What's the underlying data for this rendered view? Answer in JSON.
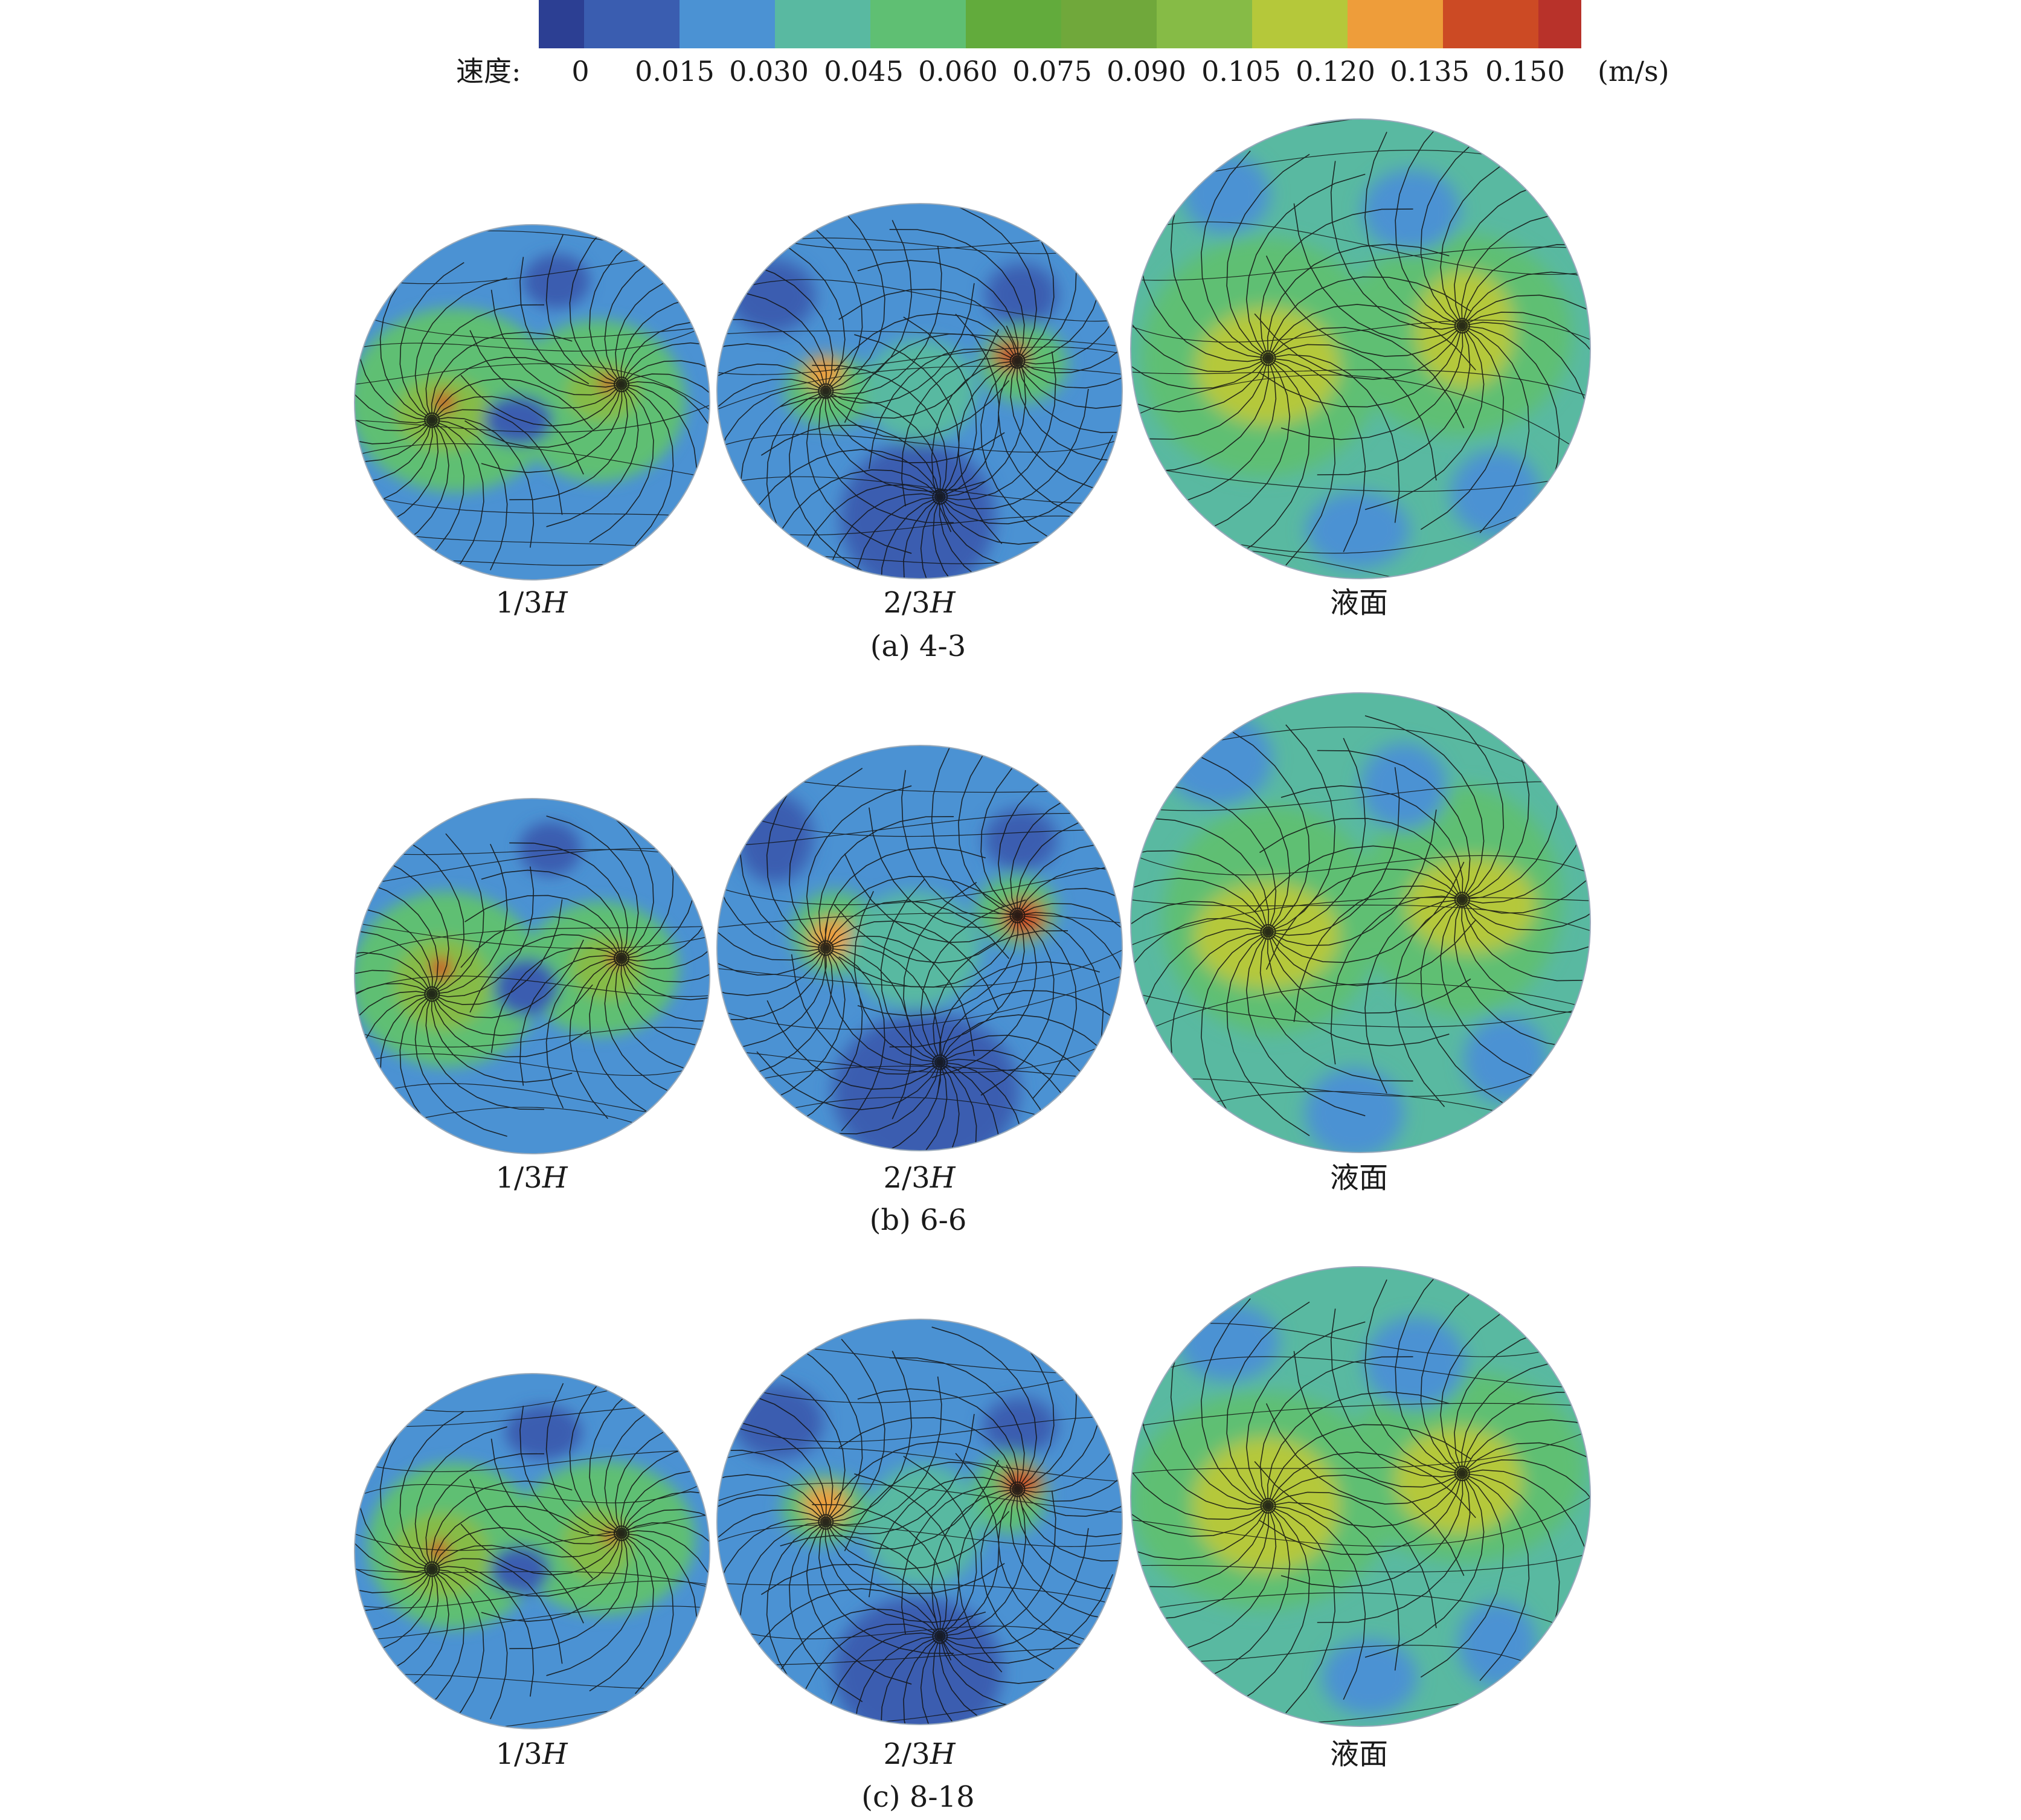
{
  "legend": {
    "label": "速度:",
    "unit": "(m/s)",
    "ticks": [
      "0",
      "0.015",
      "0.030",
      "0.045",
      "0.060",
      "0.075",
      "0.090",
      "0.105",
      "0.120",
      "0.135",
      "0.150"
    ],
    "colors": [
      "#2c3f93",
      "#3a5db0",
      "#4b92d3",
      "#59b9a1",
      "#5fbf73",
      "#62ab3c",
      "#70a83b",
      "#86bb46",
      "#b5c83a",
      "#ee9d3a",
      "#cc4a24",
      "#b8322a"
    ]
  },
  "rows": [
    {
      "caption": "(a) 4-3",
      "plots": [
        {
          "label_prefix": "1/3",
          "label_var": "H"
        },
        {
          "label_prefix": "2/3",
          "label_var": "H"
        },
        {
          "label_text": "液面"
        }
      ]
    },
    {
      "caption": "(b) 6-6",
      "plots": [
        {
          "label_prefix": "1/3",
          "label_var": "H"
        },
        {
          "label_prefix": "2/3",
          "label_var": "H"
        },
        {
          "label_text": "液面"
        }
      ]
    },
    {
      "caption": "(c) 8-18",
      "plots": [
        {
          "label_prefix": "1/3",
          "label_var": "H"
        },
        {
          "label_prefix": "2/3",
          "label_var": "H"
        },
        {
          "label_text": "液面"
        }
      ]
    }
  ]
}
